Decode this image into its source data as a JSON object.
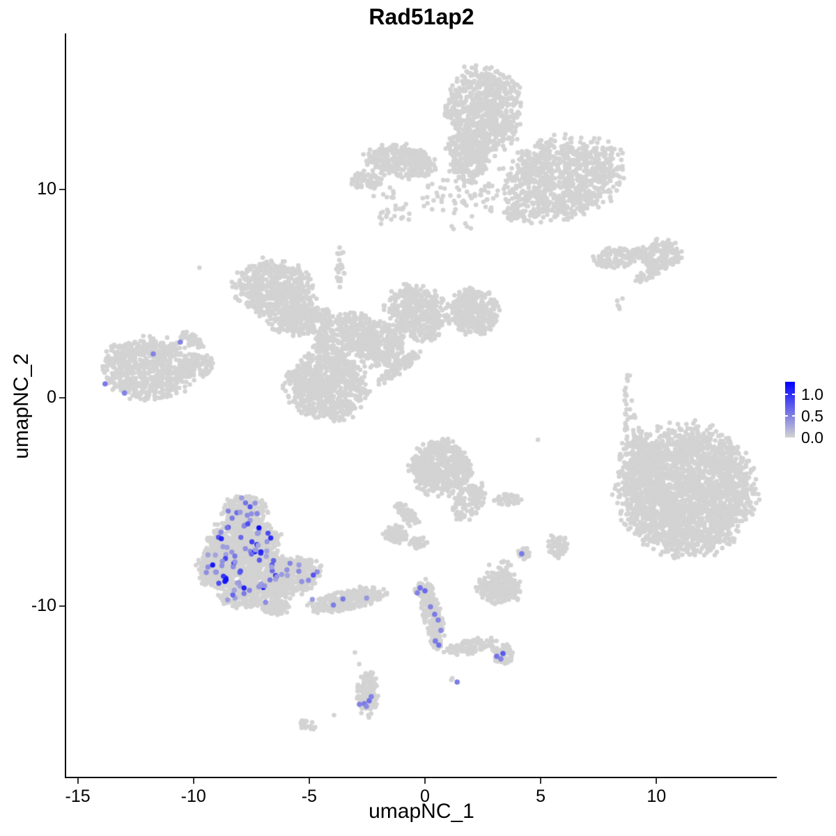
{
  "chart_data": {
    "type": "scatter",
    "title": "Rad51ap2",
    "xlabel": "umapNC_1",
    "ylabel": "umapNC_2",
    "xlim": [
      -15.5,
      15.2
    ],
    "ylim": [
      -18.2,
      17.5
    ],
    "x_ticks": [
      -15,
      -10,
      -5,
      0,
      5,
      10
    ],
    "x_tick_labels": [
      "-15",
      "-10",
      "-5",
      "0",
      "5",
      "10"
    ],
    "y_ticks": [
      10,
      0,
      -10
    ],
    "y_tick_labels": [
      "10",
      "0",
      "-10"
    ],
    "grid": false,
    "legend": {
      "position": "right",
      "ticks": [
        1.0,
        0.5,
        0.0
      ],
      "tick_labels": [
        "1.0",
        "0.5",
        "0.0"
      ],
      "vmax": 1.3,
      "low_color": "#d3d3d3",
      "high_color": "#0000ff"
    },
    "base_point_color": "#d3d3d3",
    "clusters": [
      {
        "id": "top-head",
        "x": 2.5,
        "y": 13.78,
        "rx": 1.57,
        "ry": 2.07,
        "rot": 0,
        "n": 700
      },
      {
        "id": "top-neck",
        "x": 1.87,
        "y": 11.61,
        "rx": 0.9,
        "ry": 1.17,
        "rot": 0,
        "n": 280
      },
      {
        "id": "top-left-wing",
        "x": -1.05,
        "y": 11.37,
        "rx": 1.45,
        "ry": 0.74,
        "rot": -8,
        "n": 320
      },
      {
        "id": "top-left-arm",
        "x": -2.5,
        "y": 10.44,
        "rx": 0.66,
        "ry": 0.4,
        "rot": 0,
        "n": 70
      },
      {
        "id": "top-right-wing",
        "x": 5.87,
        "y": 10.5,
        "rx": 2.56,
        "ry": 1.84,
        "rot": 20,
        "n": 950
      },
      {
        "id": "top-spray",
        "x": 1.51,
        "y": 9.43,
        "rx": 1.66,
        "ry": 1.34,
        "rot": 0,
        "n": 70
      },
      {
        "id": "top-small-blob",
        "x": 3.82,
        "y": 8.83,
        "rx": 0.42,
        "ry": 0.33,
        "rot": 0,
        "n": 35
      },
      {
        "id": "top-left-spray",
        "x": -1.51,
        "y": 9.1,
        "rx": 0.9,
        "ry": 0.94,
        "rot": 0,
        "n": 30
      },
      {
        "id": "mid-left-wing",
        "x": -6.47,
        "y": 5.25,
        "rx": 1.66,
        "ry": 1.27,
        "rot": -15,
        "n": 600
      },
      {
        "id": "mid-left-lower",
        "x": -5.42,
        "y": 3.75,
        "rx": 1.35,
        "ry": 0.67,
        "rot": 10,
        "n": 250
      },
      {
        "id": "mid-band",
        "x": -3.46,
        "y": 3.08,
        "rx": 1.35,
        "ry": 0.94,
        "rot": 25,
        "n": 300
      },
      {
        "id": "mid-core",
        "x": -1.96,
        "y": 2.58,
        "rx": 1.05,
        "ry": 1.0,
        "rot": 0,
        "n": 350
      },
      {
        "id": "mid-lower-blob",
        "x": -4.21,
        "y": 0.57,
        "rx": 1.66,
        "ry": 1.61,
        "rot": 0,
        "n": 750
      },
      {
        "id": "mid-upper-arm",
        "x": -0.3,
        "y": 4.08,
        "rx": 1.35,
        "ry": 1.17,
        "rot": -40,
        "n": 400
      },
      {
        "id": "mid-right-arm",
        "x": 2.11,
        "y": 4.08,
        "rx": 1.05,
        "ry": 1.07,
        "rot": 0,
        "n": 320
      },
      {
        "id": "mid-streak",
        "x": -1.14,
        "y": 1.44,
        "rx": 1.14,
        "ry": 0.27,
        "rot": 40,
        "n": 90
      },
      {
        "id": "mid-trail-up",
        "x": -3.61,
        "y": 6.26,
        "rx": 0.24,
        "ry": 0.94,
        "rot": 0,
        "n": 25
      },
      {
        "id": "left-main",
        "x": -11.89,
        "y": 1.41,
        "rx": 1.87,
        "ry": 1.41,
        "rot": -5,
        "n": 650
      },
      {
        "id": "left-ear",
        "x": -10.06,
        "y": 2.78,
        "rx": 0.6,
        "ry": 0.27,
        "rot": -35,
        "n": 45
      },
      {
        "id": "left-east",
        "x": -9.78,
        "y": 1.57,
        "rx": 0.75,
        "ry": 0.5,
        "rot": 0,
        "n": 90
      },
      {
        "id": "dot-upper-left",
        "x": -9.78,
        "y": 6.26,
        "rx": 0.04,
        "ry": 0.04,
        "rot": 0,
        "n": 1
      },
      {
        "id": "topright-islands",
        "x": 8.43,
        "y": 6.76,
        "rx": 1.14,
        "ry": 0.47,
        "rot": 5,
        "n": 130
      },
      {
        "id": "topright-blob",
        "x": 10.17,
        "y": 6.89,
        "rx": 0.84,
        "ry": 0.67,
        "rot": 0,
        "n": 160
      },
      {
        "id": "topright-streak",
        "x": 9.63,
        "y": 5.92,
        "rx": 0.54,
        "ry": 0.27,
        "rot": 35,
        "n": 35
      },
      {
        "id": "topright-dots",
        "x": 8.52,
        "y": 4.52,
        "rx": 0.27,
        "ry": 0.33,
        "rot": 0,
        "n": 5
      },
      {
        "id": "right-trail",
        "x": 8.79,
        "y": -0.1,
        "rx": 0.24,
        "ry": 1.34,
        "rot": 0,
        "n": 20
      },
      {
        "id": "right-main",
        "x": 11.29,
        "y": -4.45,
        "rx": 2.77,
        "ry": 2.94,
        "rot": 0,
        "n": 2400
      },
      {
        "id": "right-bump",
        "x": 9.33,
        "y": -2.94,
        "rx": 0.9,
        "ry": 1.17,
        "rot": 0,
        "n": 170
      },
      {
        "id": "right-nw-dots",
        "x": 8.88,
        "y": -1.34,
        "rx": 0.54,
        "ry": 0.84,
        "rot": 0,
        "n": 15
      },
      {
        "id": "center-blob",
        "x": 0.66,
        "y": -3.35,
        "rx": 1.26,
        "ry": 1.27,
        "rot": 0,
        "n": 500
      },
      {
        "id": "center-tail",
        "x": 1.87,
        "y": -5.02,
        "rx": 0.6,
        "ry": 0.94,
        "rot": -30,
        "n": 130
      },
      {
        "id": "center-arm",
        "x": -0.78,
        "y": -5.62,
        "rx": 0.78,
        "ry": 0.27,
        "rot": -50,
        "n": 55
      },
      {
        "id": "center-arm-end",
        "x": -1.26,
        "y": -6.56,
        "rx": 0.48,
        "ry": 0.4,
        "rot": 0,
        "n": 65
      },
      {
        "id": "center-small",
        "x": -0.3,
        "y": -6.96,
        "rx": 0.36,
        "ry": 0.27,
        "rot": 0,
        "n": 35
      },
      {
        "id": "center-east-bar",
        "x": 3.55,
        "y": -4.88,
        "rx": 0.54,
        "ry": 0.3,
        "rot": 0,
        "n": 45
      },
      {
        "id": "center-se-small",
        "x": 4.3,
        "y": -7.46,
        "rx": 0.3,
        "ry": 0.33,
        "rot": 0,
        "n": 28
      },
      {
        "id": "center-se-blob",
        "x": 5.72,
        "y": -7.13,
        "rx": 0.42,
        "ry": 0.54,
        "rot": 0,
        "n": 65
      },
      {
        "id": "center-dot",
        "x": 4.88,
        "y": -2.01,
        "rx": 0.04,
        "ry": 0.04,
        "rot": 0,
        "n": 1
      },
      {
        "id": "center-bits",
        "x": 3.46,
        "y": -8.03,
        "rx": 0.24,
        "ry": 0.17,
        "rot": 0,
        "n": 8
      },
      {
        "id": "bottommid-cluster",
        "x": 3.25,
        "y": -9.13,
        "rx": 0.9,
        "ry": 0.74,
        "rot": 0,
        "n": 240
      },
      {
        "id": "bottommid-dots",
        "x": 3.07,
        "y": -8.23,
        "rx": 0.45,
        "ry": 0.23,
        "rot": 0,
        "n": 6
      },
      {
        "id": "streak-base",
        "x": 0.3,
        "y": -10.47,
        "rx": 0.42,
        "ry": 1.61,
        "rot": 10,
        "n": 210
      },
      {
        "id": "streak-top",
        "x": -0.09,
        "y": -9.23,
        "rx": 0.36,
        "ry": 0.33,
        "rot": 0,
        "n": 55
      },
      {
        "id": "streak-arm",
        "x": 2.11,
        "y": -11.91,
        "rx": 1.2,
        "ry": 0.33,
        "rot": 12,
        "n": 95
      },
      {
        "id": "streak-end",
        "x": 3.37,
        "y": -12.31,
        "rx": 0.48,
        "ry": 0.47,
        "rot": 0,
        "n": 75
      },
      {
        "id": "streak-below",
        "x": 1.2,
        "y": -13.48,
        "rx": 0.1,
        "ry": 0.1,
        "rot": 0,
        "n": 2
      },
      {
        "id": "bottom-blob",
        "x": -2.5,
        "y": -14.15,
        "rx": 0.42,
        "ry": 1.07,
        "rot": 0,
        "n": 140
      },
      {
        "id": "bottom-dot1",
        "x": -3.01,
        "y": -12.24,
        "rx": 0.04,
        "ry": 0.04,
        "rot": 0,
        "n": 1
      },
      {
        "id": "bottom-dot2",
        "x": -2.83,
        "y": -12.75,
        "rx": 0.04,
        "ry": 0.04,
        "rot": 0,
        "n": 1
      },
      {
        "id": "bottom-dot3",
        "x": -3.91,
        "y": -15.25,
        "rx": 0.04,
        "ry": 0.04,
        "rot": 0,
        "n": 1
      },
      {
        "id": "bottom-west",
        "x": -5.06,
        "y": -15.72,
        "rx": 0.36,
        "ry": 0.23,
        "rot": -20,
        "n": 22
      },
      {
        "id": "lowleft-top",
        "x": -7.77,
        "y": -5.45,
        "rx": 0.9,
        "ry": 0.74,
        "rot": 0,
        "n": 260
      },
      {
        "id": "lowleft-upper",
        "x": -7.83,
        "y": -6.79,
        "rx": 1.45,
        "ry": 1.0,
        "rot": 0,
        "n": 520
      },
      {
        "id": "lowleft-mid",
        "x": -7.68,
        "y": -8.3,
        "rx": 1.87,
        "ry": 1.0,
        "rot": 0,
        "n": 620
      },
      {
        "id": "lowleft-lower",
        "x": -7.53,
        "y": -9.47,
        "rx": 1.35,
        "ry": 0.6,
        "rot": 0,
        "n": 260
      },
      {
        "id": "lowleft-west",
        "x": -9.18,
        "y": -8.13,
        "rx": 0.66,
        "ry": 0.94,
        "rot": 0,
        "n": 160
      },
      {
        "id": "lowleft-east",
        "x": -5.72,
        "y": -8.63,
        "rx": 1.2,
        "ry": 0.84,
        "rot": 25,
        "n": 320
      },
      {
        "id": "lowleft-tail",
        "x": -3.31,
        "y": -9.7,
        "rx": 1.66,
        "ry": 0.47,
        "rot": 12,
        "n": 290
      },
      {
        "id": "lowleft-south",
        "x": -6.47,
        "y": -10.04,
        "rx": 0.6,
        "ry": 0.4,
        "rot": 0,
        "n": 85
      }
    ],
    "expression_blobs": [
      {
        "x": -7.77,
        "y": -5.45,
        "rx": 0.85,
        "ry": 0.65,
        "n": 13,
        "vmin": 0.3,
        "vmax": 0.85
      },
      {
        "x": -7.83,
        "y": -6.79,
        "rx": 1.35,
        "ry": 0.95,
        "n": 28,
        "vmin": 0.3,
        "vmax": 1.25
      },
      {
        "x": -7.68,
        "y": -8.3,
        "rx": 1.75,
        "ry": 0.95,
        "n": 30,
        "vmin": 0.3,
        "vmax": 1.25
      },
      {
        "x": -7.53,
        "y": -9.47,
        "rx": 1.25,
        "ry": 0.55,
        "n": 10,
        "vmin": 0.3,
        "vmax": 0.7
      },
      {
        "x": -9.18,
        "y": -8.13,
        "rx": 0.6,
        "ry": 0.85,
        "n": 8,
        "vmin": 0.3,
        "vmax": 1.2
      },
      {
        "x": -5.72,
        "y": -8.63,
        "rx": 1.1,
        "ry": 0.75,
        "n": 12,
        "vmin": 0.3,
        "vmax": 0.8
      },
      {
        "x": -3.31,
        "y": -9.7,
        "rx": 1.5,
        "ry": 0.4,
        "n": 4,
        "vmin": 0.35,
        "vmax": 0.6
      }
    ],
    "expression_points": [
      {
        "x": -10.57,
        "y": 2.68,
        "v": 0.5
      },
      {
        "x": -11.74,
        "y": 2.11,
        "v": 0.5
      },
      {
        "x": -13.82,
        "y": 0.67,
        "v": 0.55
      },
      {
        "x": -12.98,
        "y": 0.23,
        "v": 0.5
      },
      {
        "x": -0.21,
        "y": -9.13,
        "v": 0.6
      },
      {
        "x": 0.0,
        "y": -9.27,
        "v": 0.65
      },
      {
        "x": -0.33,
        "y": -9.37,
        "v": 0.5
      },
      {
        "x": 0.24,
        "y": -10.04,
        "v": 0.5
      },
      {
        "x": 0.42,
        "y": -10.4,
        "v": 0.55
      },
      {
        "x": 0.57,
        "y": -10.67,
        "v": 0.5
      },
      {
        "x": 0.69,
        "y": -11.17,
        "v": 0.45
      },
      {
        "x": 0.45,
        "y": -11.68,
        "v": 0.55
      },
      {
        "x": 0.6,
        "y": -11.88,
        "v": 0.6
      },
      {
        "x": 3.1,
        "y": -12.41,
        "v": 0.6
      },
      {
        "x": 3.37,
        "y": -12.28,
        "v": 0.75
      },
      {
        "x": 3.28,
        "y": -12.54,
        "v": 0.5
      },
      {
        "x": 1.39,
        "y": -13.65,
        "v": 0.55
      },
      {
        "x": -2.83,
        "y": -14.72,
        "v": 0.5
      },
      {
        "x": -2.62,
        "y": -14.69,
        "v": 0.55
      },
      {
        "x": -2.41,
        "y": -14.55,
        "v": 0.6
      },
      {
        "x": -2.32,
        "y": -14.35,
        "v": 0.5
      },
      {
        "x": -2.53,
        "y": -14.82,
        "v": 0.45
      },
      {
        "x": 4.18,
        "y": -7.49,
        "v": 0.55
      }
    ]
  }
}
